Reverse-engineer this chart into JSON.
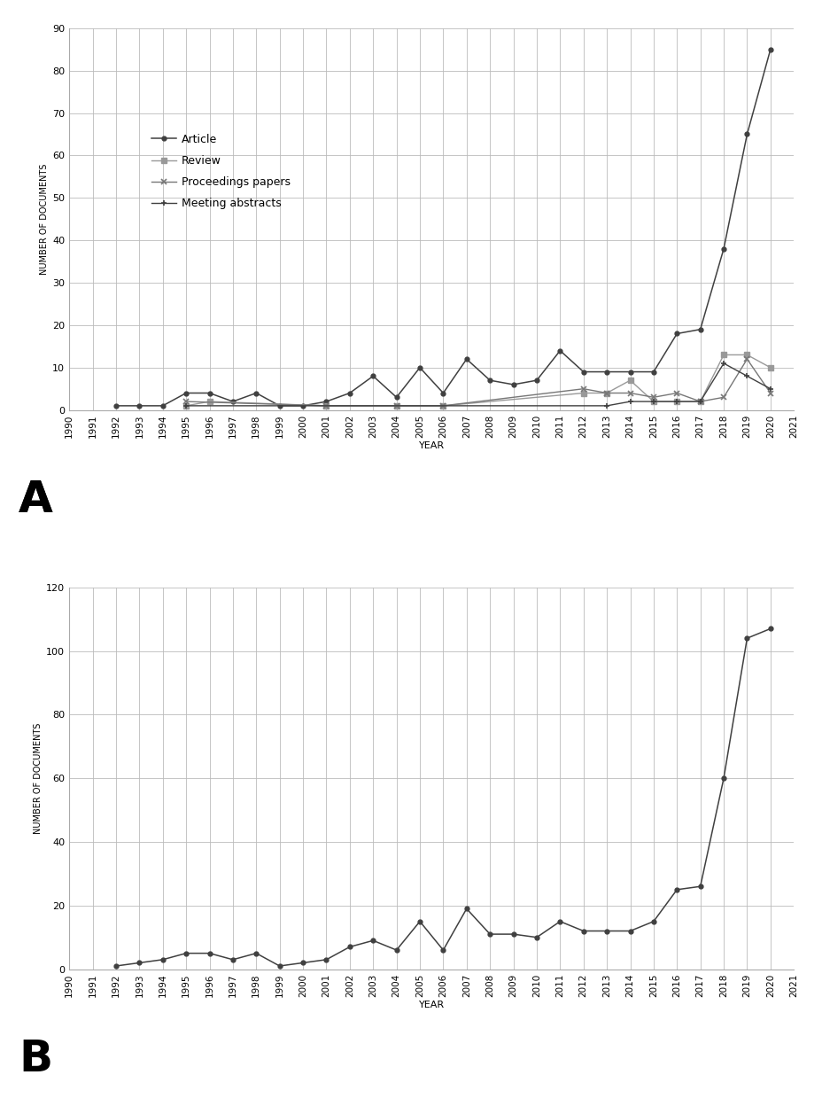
{
  "article_years": [
    1992,
    1993,
    1994,
    1995,
    1996,
    1997,
    1998,
    1999,
    2000,
    2001,
    2002,
    2003,
    2004,
    2005,
    2006,
    2007,
    2008,
    2009,
    2010,
    2011,
    2012,
    2013,
    2014,
    2015,
    2016,
    2017,
    2018,
    2019,
    2020
  ],
  "article_vals": [
    1,
    1,
    1,
    4,
    4,
    2,
    4,
    1,
    1,
    2,
    4,
    8,
    3,
    10,
    4,
    12,
    7,
    6,
    7,
    14,
    9,
    9,
    9,
    9,
    18,
    19,
    38,
    65,
    85
  ],
  "review_years": [
    1995,
    1996,
    2001,
    2004,
    2006,
    2012,
    2013,
    2014,
    2015,
    2016,
    2017,
    2018,
    2019,
    2020
  ],
  "review_vals": [
    1,
    2,
    1,
    1,
    1,
    4,
    4,
    7,
    2,
    2,
    2,
    13,
    13,
    10
  ],
  "proc_years": [
    1995,
    2001,
    2004,
    2006,
    2012,
    2013,
    2014,
    2015,
    2016,
    2017,
    2018,
    2019,
    2020
  ],
  "proc_vals": [
    2,
    1,
    1,
    1,
    5,
    4,
    4,
    3,
    4,
    2,
    3,
    12,
    4
  ],
  "meet_years": [
    1995,
    2013,
    2014,
    2015,
    2016,
    2017,
    2018,
    2019,
    2020
  ],
  "meet_vals": [
    1,
    1,
    2,
    2,
    2,
    2,
    11,
    8,
    5
  ],
  "pb_years": [
    1992,
    1993,
    1994,
    1995,
    1996,
    1997,
    1998,
    1999,
    2000,
    2001,
    2002,
    2003,
    2004,
    2005,
    2006,
    2007,
    2008,
    2009,
    2010,
    2011,
    2012,
    2013,
    2014,
    2015,
    2016,
    2017,
    2018,
    2019,
    2020
  ],
  "pb_vals": [
    1,
    2,
    3,
    5,
    5,
    3,
    5,
    1,
    2,
    3,
    7,
    9,
    6,
    15,
    6,
    19,
    11,
    11,
    10,
    15,
    12,
    12,
    12,
    15,
    25,
    26,
    60,
    104,
    107
  ],
  "article_color": "#404040",
  "review_color": "#999999",
  "proc_color": "#777777",
  "meet_color": "#404040",
  "pb_color": "#404040",
  "ylabel": "NUMBER OF DOCUMENTS",
  "xlabel": "YEAR",
  "ylim_a": [
    0,
    90
  ],
  "yticks_a": [
    0,
    10,
    20,
    30,
    40,
    50,
    60,
    70,
    80,
    90
  ],
  "ylim_b": [
    0,
    120
  ],
  "yticks_b": [
    0,
    20,
    40,
    60,
    80,
    100,
    120
  ],
  "legend_labels": [
    "Article",
    "Review",
    "Proceedings papers",
    "Meeting abstracts"
  ],
  "fig_bg": "#ffffff",
  "grid_color": "#bbbbbb"
}
